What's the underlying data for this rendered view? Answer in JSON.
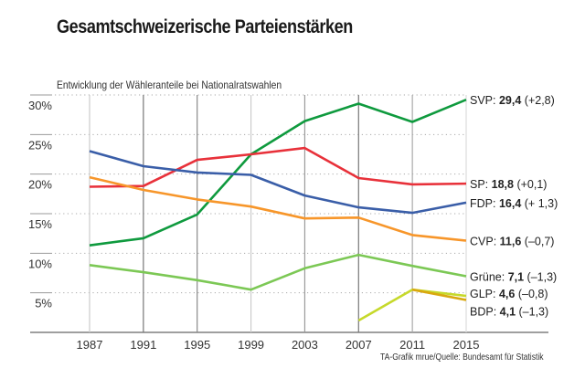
{
  "chart_data": {
    "type": "line",
    "title": "Gesamtschweizerische Parteienstärken",
    "subtitle": "Entwicklung der Wähleranteile bei Nationalratswahlen",
    "source": "TA-Grafik mrue/Quelle: Bundesamt für Statistik",
    "xlabel": "",
    "ylabel": "",
    "x": [
      1987,
      1991,
      1995,
      1999,
      2003,
      2007,
      2011,
      2015
    ],
    "x_tick_labels": [
      "1987",
      "1991",
      "1995",
      "1999",
      "2003",
      "2007",
      "2011",
      "2015"
    ],
    "y_ticks": [
      5,
      10,
      15,
      20,
      25,
      30
    ],
    "y_tick_labels": [
      "5%",
      "10%",
      "15%",
      "20%",
      "25%",
      "30%"
    ],
    "ylim": [
      0,
      30
    ],
    "grid": "horizontal dotted",
    "legend": "direct labels at line ends (right)",
    "series": [
      {
        "name": "SVP",
        "color": "#0f9a3e",
        "values": [
          11.0,
          11.9,
          14.9,
          22.5,
          26.7,
          28.9,
          26.6,
          29.4
        ],
        "end_label": {
          "party": "SVP:",
          "value": "29,4",
          "change": "(+2,8)"
        }
      },
      {
        "name": "SP",
        "color": "#e8313a",
        "values": [
          18.4,
          18.5,
          21.8,
          22.5,
          23.3,
          19.5,
          18.7,
          18.8
        ],
        "end_label": {
          "party": "SP:",
          "value": "18,8",
          "change": "(+0,1)"
        }
      },
      {
        "name": "FDP",
        "color": "#3a5ea8",
        "values": [
          22.9,
          21.0,
          20.2,
          19.9,
          17.3,
          15.8,
          15.1,
          16.4
        ],
        "end_label": {
          "party": "FDP:",
          "value": "16,4",
          "change": "(+ 1,3)"
        }
      },
      {
        "name": "CVP",
        "color": "#f7962a",
        "values": [
          19.6,
          18.0,
          16.8,
          15.9,
          14.4,
          14.5,
          12.3,
          11.6
        ],
        "end_label": {
          "party": "CVP:",
          "value": "11,6",
          "change": "(–0,7)"
        }
      },
      {
        "name": "Grüne",
        "color": "#7cc855",
        "values": [
          8.5,
          7.6,
          6.6,
          5.4,
          8.1,
          9.8,
          8.4,
          7.1
        ],
        "end_label": {
          "party": "Grüne:",
          "value": "7,1",
          "change": "(–1,3)"
        }
      },
      {
        "name": "GLP",
        "color": "#c6d92b",
        "values": [
          null,
          null,
          null,
          null,
          null,
          1.5,
          5.4,
          4.6
        ],
        "end_label": {
          "party": "GLP:",
          "value": "4,6",
          "change": "(–0,8)"
        }
      },
      {
        "name": "BDP",
        "color": "#d9a80f",
        "values": [
          null,
          null,
          null,
          null,
          null,
          null,
          5.4,
          4.1
        ],
        "end_label": {
          "party": "BDP:",
          "value": "4,1",
          "change": "(–1,3)"
        }
      }
    ]
  }
}
